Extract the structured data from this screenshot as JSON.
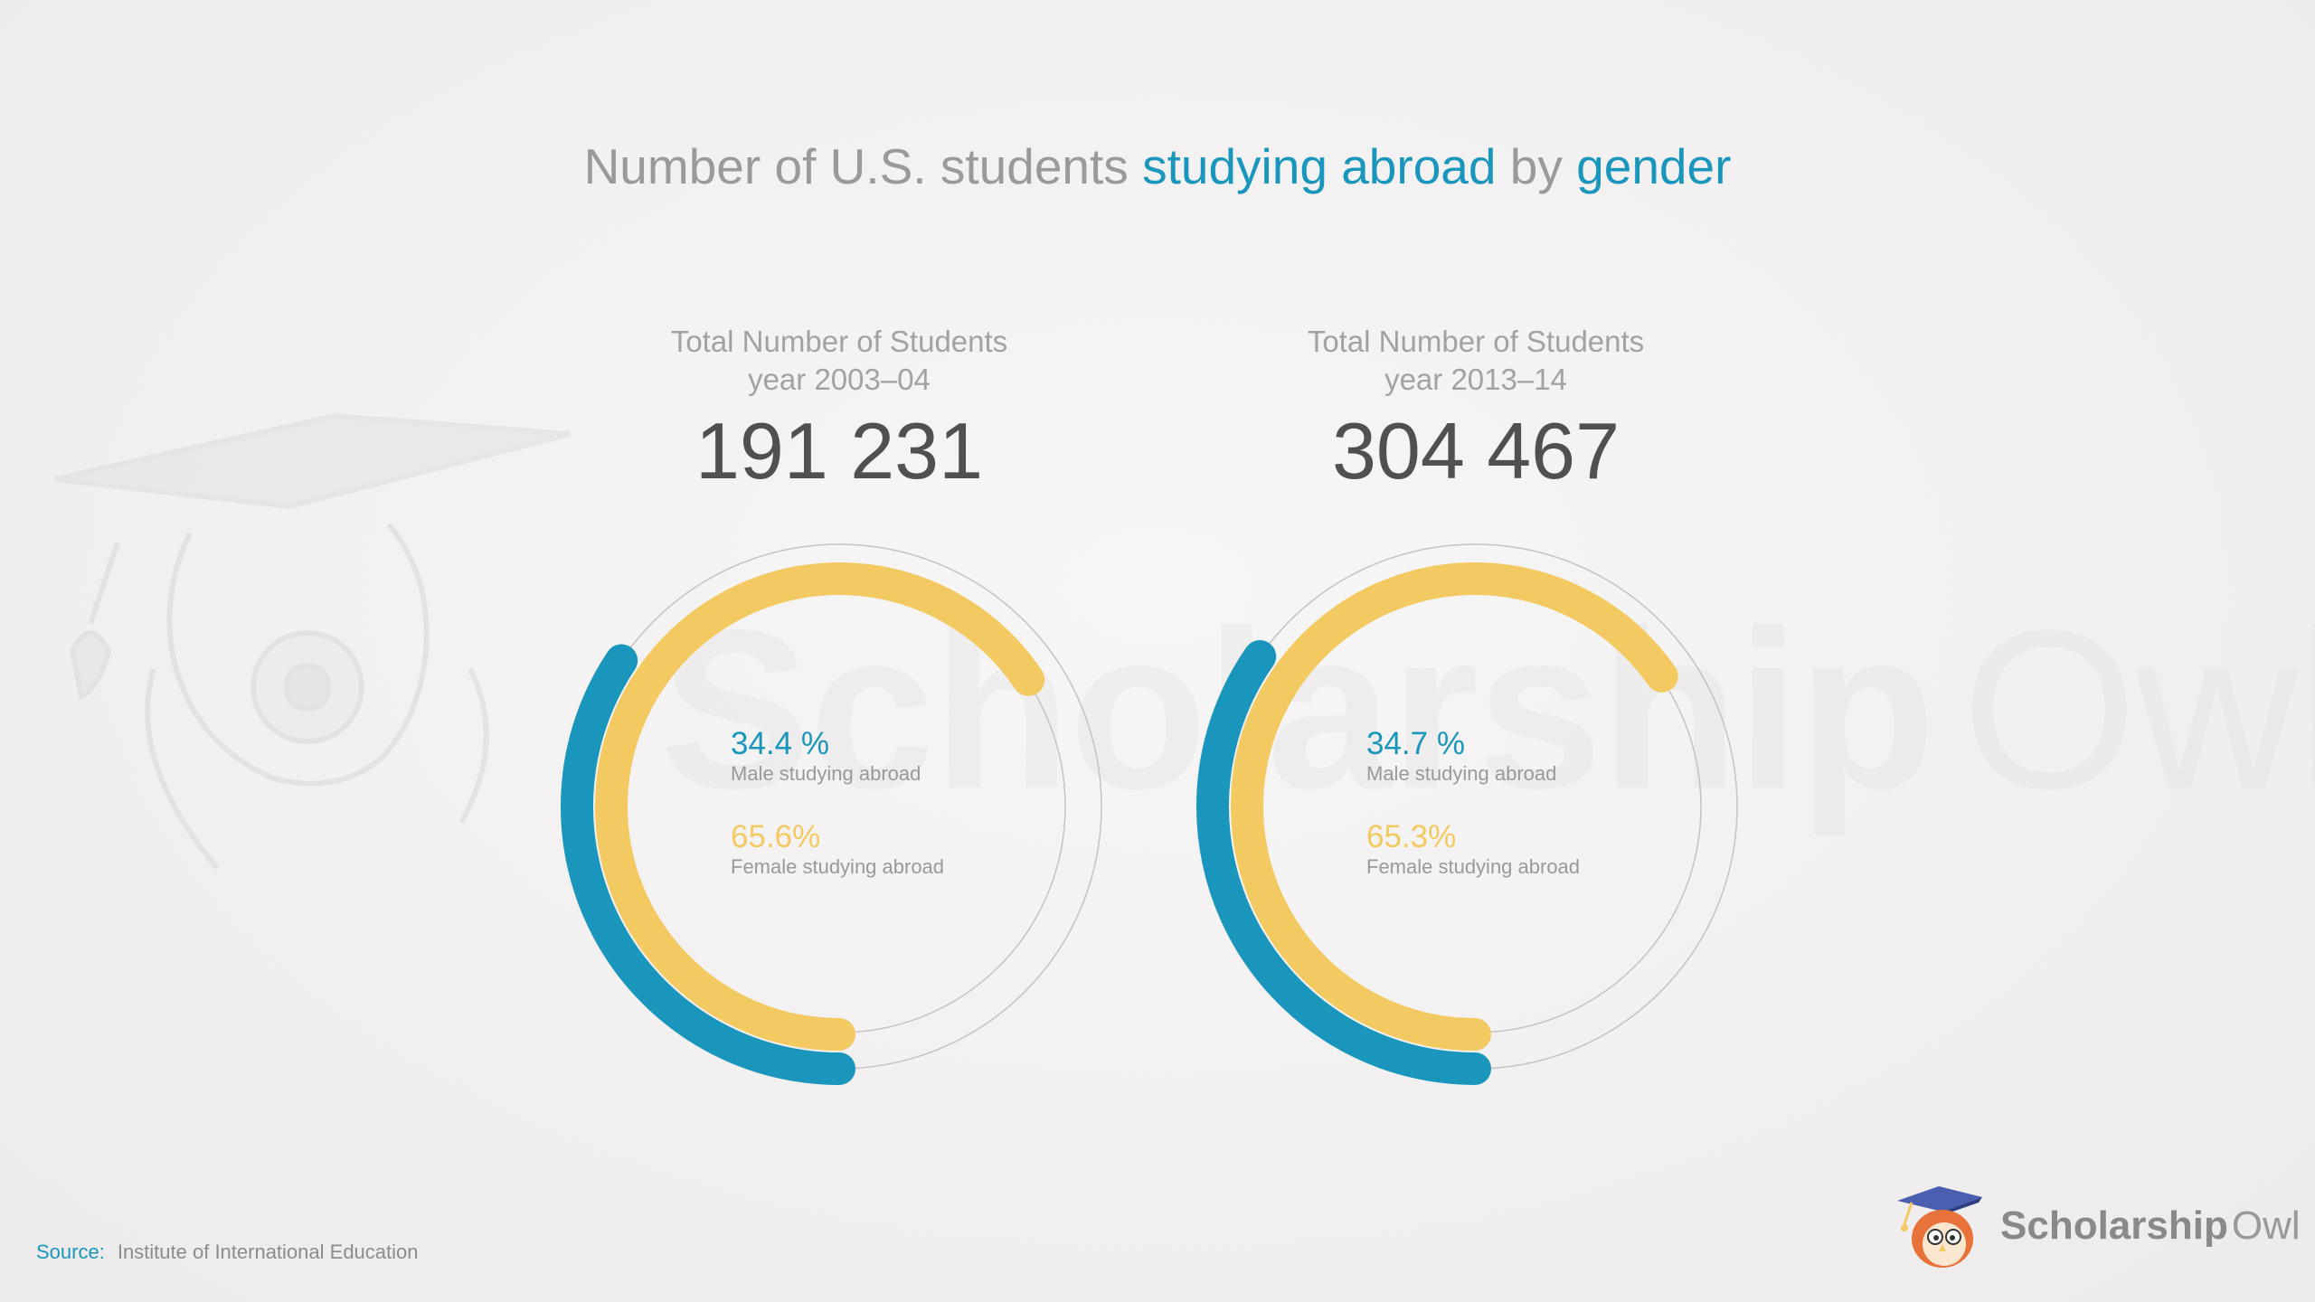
{
  "header": {
    "title_part1": "Number of U.S. students ",
    "title_part2": "studying abroad",
    "title_part3": " by ",
    "title_part4": "gender"
  },
  "watermark": {
    "word_bold": "Scholarship",
    "word_light": "Owl"
  },
  "colors": {
    "male": "#1a96bc",
    "female": "#f3c962",
    "ring": "#c4c2c2",
    "title_gray": "#9b9999",
    "number": "#505050"
  },
  "chart_data": [
    {
      "type": "pie",
      "title": "Total Number of Students",
      "subtitle": "year 2003–04",
      "total_label": "191 231",
      "total": 191231,
      "categories": [
        "Male studying abroad",
        "Female studying abroad"
      ],
      "values": [
        34.4,
        65.6
      ],
      "value_labels": [
        "34.4 %",
        "65.6%"
      ]
    },
    {
      "type": "pie",
      "title": "Total Number of Students",
      "subtitle": "year 2013–14",
      "total_label": "304 467",
      "total": 304467,
      "categories": [
        "Male studying abroad",
        "Female studying abroad"
      ],
      "values": [
        34.7,
        65.3
      ],
      "value_labels": [
        "34.7 %",
        "65.3%"
      ]
    }
  ],
  "footer": {
    "source_key": "Source:",
    "source_value": "Institute of International Education",
    "logo_bold": "Scholarship",
    "logo_light": "Owl"
  }
}
